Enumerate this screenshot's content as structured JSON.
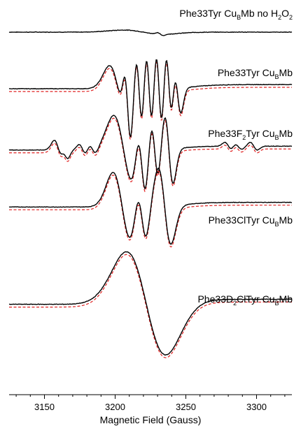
{
  "chart_data": {
    "type": "line",
    "xlabel": "Magnetic Field (Gauss)",
    "ylabel": "",
    "xlim": [
      3125,
      3325
    ],
    "xticks": [
      "3150",
      "3200",
      "3250",
      "3300"
    ],
    "legend": "none",
    "grid": false,
    "colors": {
      "experimental": "#000000",
      "simulated": "#e02020"
    },
    "line_styles": {
      "experimental": "solid",
      "simulated": "dashed"
    },
    "spectra": [
      {
        "label": {
          "pre": "Phe33Tyr Cu",
          "sub": "B",
          "mid": "Mb no H",
          "sub2": "2",
          "mid2": "O",
          "sub3": "2"
        },
        "has_simulation": false,
        "features": [
          {
            "type": "noise",
            "amp": 0.02
          },
          {
            "type": "deriv",
            "center": 3220,
            "width": 14,
            "amp": 0.1
          },
          {
            "type": "deriv",
            "center": 3232,
            "width": 2,
            "amp": 0.06
          }
        ]
      },
      {
        "label": {
          "pre": "Phe33Tyr Cu",
          "sub": "B",
          "mid": "Mb"
        },
        "has_simulation": true,
        "features": [
          {
            "type": "deriv",
            "center": 3202,
            "width": 6,
            "amp": 0.55
          },
          {
            "type": "deriv",
            "center": 3209,
            "width": 2.2,
            "amp": 0.8
          },
          {
            "type": "deriv",
            "center": 3217,
            "width": 2.2,
            "amp": 0.85
          },
          {
            "type": "deriv",
            "center": 3224,
            "width": 2.2,
            "amp": 0.9
          },
          {
            "type": "deriv",
            "center": 3231,
            "width": 2.2,
            "amp": 0.95
          },
          {
            "type": "deriv",
            "center": 3238,
            "width": 2.2,
            "amp": 0.9
          },
          {
            "type": "deriv",
            "center": 3244,
            "width": 2.5,
            "amp": 0.6
          },
          {
            "type": "tail",
            "center": 3256,
            "width": 35,
            "amp": 0.1
          }
        ]
      },
      {
        "label": {
          "pre": "Phe33F",
          "sub": "2",
          "mid": "Tyr Cu",
          "sub2": "B",
          "mid2": "Mb"
        },
        "has_simulation": true,
        "features": [
          {
            "type": "deriv",
            "center": 3160,
            "width": 3,
            "amp": 0.25
          },
          {
            "type": "deriv",
            "center": 3165,
            "width": 2,
            "amp": 0.15
          },
          {
            "type": "deriv",
            "center": 3177,
            "width": 2.5,
            "amp": 0.14
          },
          {
            "type": "deriv",
            "center": 3184,
            "width": 2.5,
            "amp": 0.14
          },
          {
            "type": "deriv",
            "center": 3206,
            "width": 7,
            "amp": 0.9
          },
          {
            "type": "deriv",
            "center": 3219,
            "width": 2.8,
            "amp": 0.85
          },
          {
            "type": "deriv",
            "center": 3228,
            "width": 2.6,
            "amp": 0.75
          },
          {
            "type": "deriv",
            "center": 3238,
            "width": 3,
            "amp": 0.9
          },
          {
            "type": "deriv",
            "center": 3280,
            "width": 2.5,
            "amp": 0.1
          },
          {
            "type": "deriv",
            "center": 3287,
            "width": 2.5,
            "amp": 0.08
          },
          {
            "type": "deriv",
            "center": 3298,
            "width": 2.5,
            "amp": 0.1
          },
          {
            "type": "tail",
            "center": 3246,
            "width": 30,
            "amp": 0.1
          }
        ]
      },
      {
        "label": {
          "pre": "Phe33ClTyr Cu",
          "sub": "B",
          "mid": "Mb"
        },
        "has_simulation": true,
        "features": [
          {
            "type": "deriv",
            "center": 3205,
            "width": 6.5,
            "amp": 0.9
          },
          {
            "type": "deriv",
            "center": 3219,
            "width": 3.2,
            "amp": 0.7
          },
          {
            "type": "deriv",
            "center": 3235,
            "width": 4.5,
            "amp": 1.0
          },
          {
            "type": "tail",
            "center": 3248,
            "width": 35,
            "amp": 0.12
          }
        ]
      },
      {
        "label": {
          "pre": "Phe33D",
          "sub": "2",
          "mid": "ClTyr Cu",
          "sub2": "B",
          "mid2": "Mb"
        },
        "has_simulation": true,
        "features": [
          {
            "type": "deriv",
            "center": 3222,
            "width": 14,
            "amp": 1.25
          },
          {
            "type": "tail",
            "center": 3242,
            "width": 40,
            "amp": 0.12
          }
        ]
      }
    ]
  }
}
